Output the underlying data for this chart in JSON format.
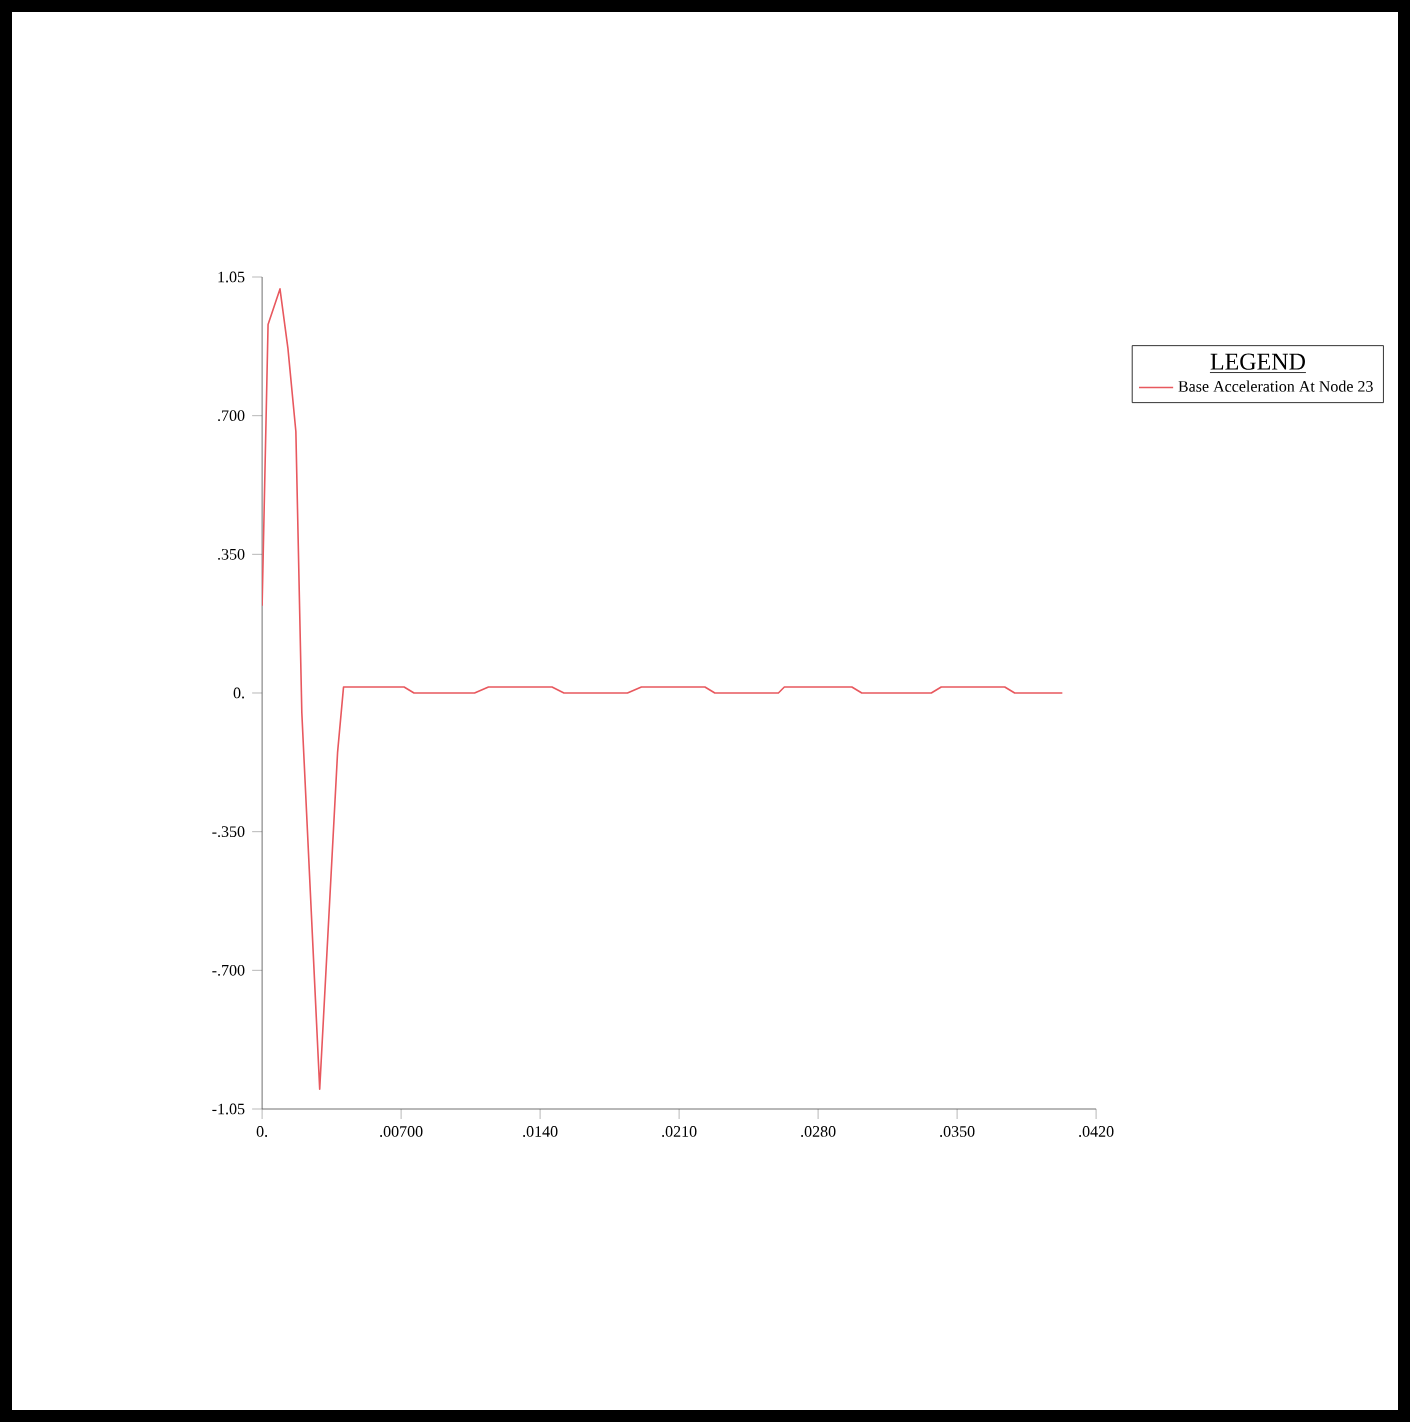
{
  "chart_data": {
    "type": "line",
    "legend_title": "LEGEND",
    "legend": "top right",
    "marker": "none",
    "line_style": "solid",
    "xlim": [
      0,
      0.042
    ],
    "ylim": [
      -1.05,
      1.05
    ],
    "xticks": [
      {
        "value": 0,
        "label": "0."
      },
      {
        "value": 0.007,
        "label": ".00700"
      },
      {
        "value": 0.014,
        "label": ".0140"
      },
      {
        "value": 0.021,
        "label": ".0210"
      },
      {
        "value": 0.028,
        "label": ".0280"
      },
      {
        "value": 0.035,
        "label": ".0350"
      },
      {
        "value": 0.042,
        "label": ".0420"
      }
    ],
    "yticks": [
      {
        "value": -1.05,
        "label": "-1.05"
      },
      {
        "value": -0.7,
        "label": "-.700"
      },
      {
        "value": -0.35,
        "label": "-.350"
      },
      {
        "value": 0,
        "label": "0."
      },
      {
        "value": 0.35,
        "label": ".350"
      },
      {
        "value": 0.7,
        "label": ".700"
      },
      {
        "value": 1.05,
        "label": "1.05"
      }
    ],
    "series": [
      {
        "name": "Base Acceleration At Node 23",
        "color": "#e8585e",
        "x": [
          0,
          0.0003,
          0.0009,
          0.0013,
          0.0017,
          0.002,
          0.0029,
          0.0038,
          0.0041,
          0.00715,
          0.00765,
          0.0107,
          0.0114,
          0.0146,
          0.0152,
          0.0184,
          0.0191,
          0.0223,
          0.0228,
          0.026,
          0.0263,
          0.0297,
          0.0302,
          0.0337,
          0.0342,
          0.0374,
          0.0379,
          0.0403
        ],
        "values": [
          0.22,
          0.93,
          1.02,
          0.87,
          0.66,
          -0.05,
          -1.0,
          -0.15,
          0.015,
          0.015,
          0,
          0,
          0.015,
          0.015,
          0,
          0,
          0.015,
          0.015,
          0,
          0,
          0.015,
          0.015,
          0,
          0,
          0.015,
          0.015,
          0,
          0
        ]
      }
    ]
  }
}
